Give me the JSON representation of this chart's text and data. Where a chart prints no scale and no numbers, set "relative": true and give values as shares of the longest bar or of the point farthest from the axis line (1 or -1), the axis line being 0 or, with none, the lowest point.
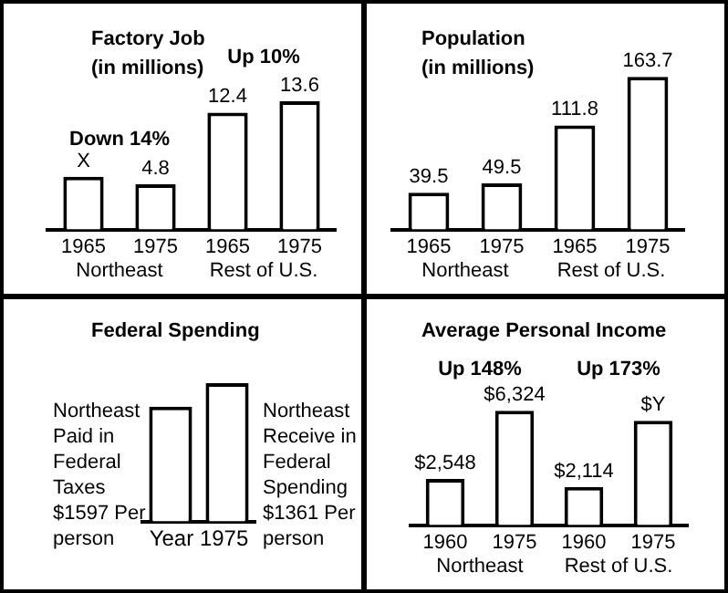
{
  "chart_data": [
    {
      "type": "bar",
      "title": "Factory Job (in millions)",
      "categories": [
        "1965",
        "1975",
        "1965",
        "1975"
      ],
      "values": [
        5.6,
        4.8,
        12.4,
        13.6
      ],
      "color": "#ffffff",
      "value_labels": [
        "X",
        "4.8",
        "12.4",
        "13.6"
      ],
      "annotations": [
        "Down 14%",
        "Up 10%",
        "Northeast",
        "Rest of U.S."
      ]
    },
    {
      "type": "bar",
      "title": "Population (in millions)",
      "categories": [
        "1965",
        "1975",
        "1965",
        "1975"
      ],
      "values": [
        39.5,
        49.5,
        111.8,
        163.7
      ],
      "color": "#ffffff",
      "data_labels": true,
      "annotations": [
        "Northeast",
        "Rest of U.S."
      ]
    },
    {
      "type": "bar",
      "title": "Federal Spending",
      "xlabel": "Year 1975",
      "categories": [
        null,
        null
      ],
      "values": [
        0.83,
        1
      ],
      "relative": true,
      "color": "#ffffff",
      "annotations": [
        "Northeast Paid in Federal Taxes $1597 Per person",
        "Northeast Receive in Federal Spending $1361 Per person"
      ]
    },
    {
      "type": "bar",
      "title": "Average Personal Income",
      "categories": [
        "1960",
        "1975",
        "1960",
        "1975"
      ],
      "values": [
        2548,
        6324,
        2114,
        5771
      ],
      "color": "#ffffff",
      "value_labels": [
        "$2,548",
        "$6,324",
        "$2,114",
        "$Y"
      ],
      "annotations": [
        "Up 148%",
        "Up 173%",
        "Northeast",
        "Rest of U.S."
      ]
    }
  ]
}
